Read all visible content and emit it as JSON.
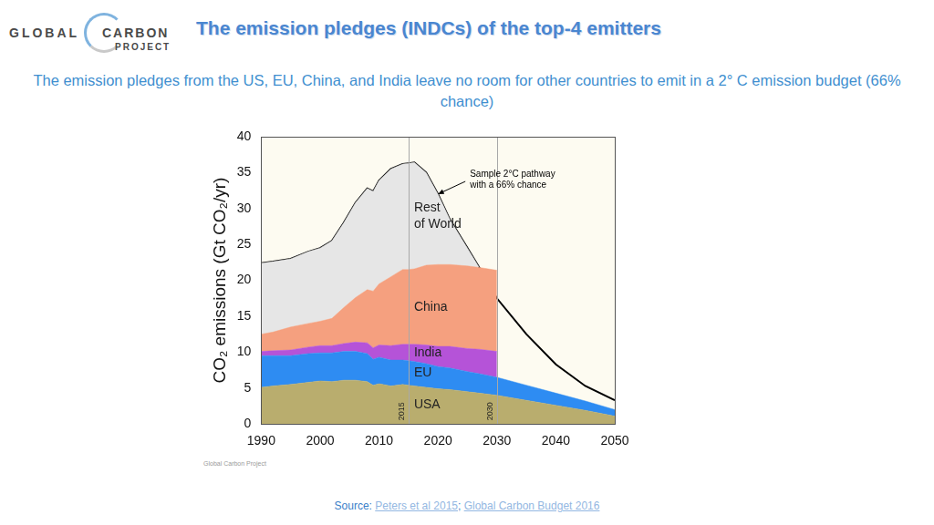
{
  "logo": [
    "GLOBAL",
    "CARBON",
    "PROJECT"
  ],
  "chart_data": {
    "type": "area",
    "title": "The emission pledges (INDCs) of the top-4 emitters",
    "subtitle": "The emission pledges from the US, EU, China, and India leave no room for other countries to emit in a 2° C emission budget (66% chance)",
    "y_label": "CO₂ emissions (Gt CO₂/yr)",
    "stacked": true,
    "grid": false,
    "x": [
      1990,
      1992,
      1995,
      1998,
      2000,
      2002,
      2004,
      2006,
      2008,
      2009,
      2010,
      2012,
      2014,
      2015,
      2016,
      2018,
      2020,
      2022,
      2025,
      2027,
      2030,
      2035,
      2040,
      2045,
      2050
    ],
    "xlim": [
      1990,
      2050
    ],
    "xticks": [
      1990,
      2000,
      2010,
      2020,
      2030,
      2040,
      2050
    ],
    "ylim": [
      0,
      40
    ],
    "yticks": [
      0,
      5,
      10,
      15,
      20,
      25,
      30,
      35,
      40
    ],
    "series": [
      {
        "name": "USA",
        "type": "area",
        "color": "#b9ad6e",
        "values": [
          5.1,
          5.3,
          5.5,
          5.8,
          6.0,
          5.9,
          6.1,
          6.1,
          5.9,
          5.4,
          5.6,
          5.3,
          5.5,
          5.4,
          5.3,
          5.1,
          4.9,
          4.8,
          4.5,
          4.3,
          4.0,
          3.3,
          2.6,
          1.9,
          1.1
        ]
      },
      {
        "name": "EU",
        "type": "area",
        "color": "#2e8cf2",
        "values": [
          4.4,
          4.2,
          4.0,
          4.0,
          3.9,
          4.0,
          4.0,
          4.0,
          3.9,
          3.6,
          3.7,
          3.6,
          3.4,
          3.4,
          3.4,
          3.3,
          3.1,
          3.0,
          2.8,
          2.7,
          2.5,
          2.1,
          1.7,
          1.3,
          0.9
        ]
      },
      {
        "name": "India",
        "type": "area",
        "color": "#b553d8",
        "values": [
          0.6,
          0.7,
          0.8,
          0.9,
          1.0,
          1.0,
          1.1,
          1.3,
          1.5,
          1.6,
          1.7,
          2.0,
          2.2,
          2.3,
          2.4,
          2.6,
          2.8,
          3.0,
          3.2,
          3.4,
          3.6,
          null,
          null,
          null,
          null
        ]
      },
      {
        "name": "China",
        "type": "area",
        "color": "#f5a07f",
        "values": [
          2.4,
          2.6,
          3.2,
          3.3,
          3.4,
          3.8,
          5.0,
          6.2,
          7.4,
          7.9,
          8.5,
          9.6,
          10.4,
          10.4,
          10.5,
          11.1,
          11.4,
          11.4,
          11.5,
          11.4,
          11.3,
          null,
          null,
          null,
          null
        ]
      },
      {
        "name": "Rest of World",
        "type": "area",
        "color": "#e6e6e6",
        "values": [
          9.9,
          9.8,
          9.5,
          10.0,
          10.2,
          10.8,
          11.8,
          13.2,
          14.1,
          13.9,
          14.4,
          15.0,
          14.7,
          14.8,
          14.8,
          12.9,
          9.8,
          6.3,
          2.5,
          0.0,
          null,
          null,
          null,
          null,
          null
        ]
      },
      {
        "name": "Sample 2°C pathway with a 66% chance",
        "type": "line",
        "color": "#000000",
        "values": [
          22.4,
          22.6,
          23.0,
          24.0,
          24.5,
          25.5,
          28.0,
          30.8,
          32.8,
          32.4,
          33.9,
          35.5,
          36.2,
          36.3,
          36.4,
          35.0,
          32.0,
          28.5,
          24.5,
          21.8,
          17.5,
          12.5,
          8.3,
          5.3,
          3.3
        ]
      }
    ],
    "annotations": [
      {
        "type": "vline",
        "x": 2015,
        "label": "2015"
      },
      {
        "type": "vline",
        "x": 2030,
        "label": "2030"
      },
      {
        "type": "arrow",
        "x": 2020,
        "y": 32.0,
        "lines": [
          "Sample 2°C pathway",
          "with a 66% chance"
        ]
      }
    ]
  },
  "credit": "Global Carbon Project",
  "source": {
    "label": "Source:",
    "links": [
      "Peters et al 2015",
      "Global Carbon Budget 2016"
    ],
    "separator": ";"
  }
}
